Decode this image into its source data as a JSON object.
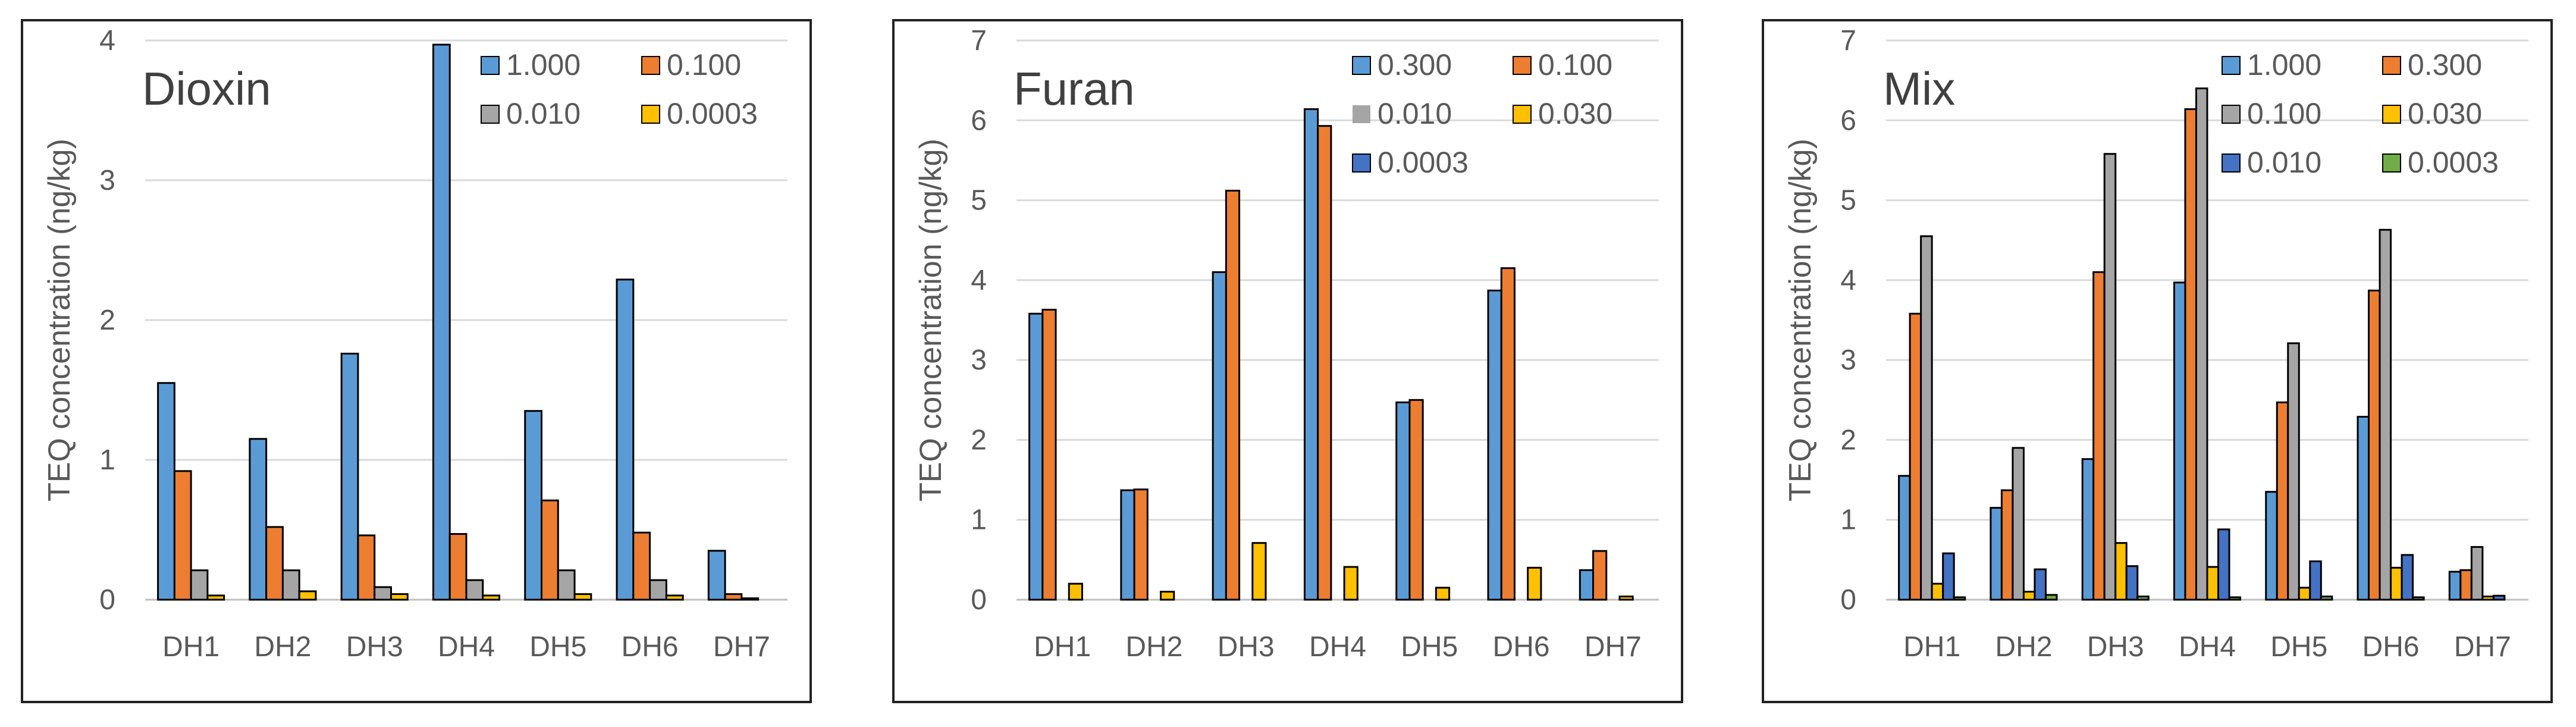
{
  "chart_data": [
    {
      "type": "bar",
      "title": "Dioxin",
      "ylabel": "TEQ concentration (ng/kg)",
      "ylim": [
        0,
        4
      ],
      "yticks": [
        0,
        1,
        2,
        3,
        4
      ],
      "grid": true,
      "legend_position": "top-right",
      "categories": [
        "DH1",
        "DH2",
        "DH3",
        "DH4",
        "DH5",
        "DH6",
        "DH7"
      ],
      "series": [
        {
          "name": "1.000",
          "color": "#5B9BD5",
          "values": [
            1.55,
            1.15,
            1.76,
            3.97,
            1.35,
            2.29,
            0.35
          ]
        },
        {
          "name": "0.100",
          "color": "#ED7D31",
          "values": [
            0.92,
            0.52,
            0.46,
            0.47,
            0.71,
            0.48,
            0.04
          ]
        },
        {
          "name": "0.010",
          "color": "#A5A5A5",
          "values": [
            0.21,
            0.21,
            0.09,
            0.14,
            0.21,
            0.14,
            0.01
          ]
        },
        {
          "name": "0.0003",
          "color": "#FFC000",
          "values": [
            0.03,
            0.06,
            0.04,
            0.03,
            0.04,
            0.03,
            0.0
          ]
        }
      ]
    },
    {
      "type": "bar",
      "title": "Furan",
      "ylabel": "TEQ concentration (ng/kg)",
      "ylim": [
        0,
        7
      ],
      "yticks": [
        0,
        1,
        2,
        3,
        4,
        5,
        6,
        7
      ],
      "grid": true,
      "legend_position": "top-right",
      "categories": [
        "DH1",
        "DH2",
        "DH3",
        "DH4",
        "DH5",
        "DH6",
        "DH7"
      ],
      "series": [
        {
          "name": "0.300",
          "color": "#5B9BD5",
          "values": [
            3.58,
            1.37,
            4.1,
            6.14,
            2.47,
            3.87,
            0.37
          ]
        },
        {
          "name": "0.100",
          "color": "#ED7D31",
          "values": [
            3.63,
            1.38,
            5.12,
            5.93,
            2.5,
            4.15,
            0.61
          ]
        },
        {
          "name": "0.010",
          "color": "#A5A5A5",
          "values": [
            0,
            0,
            0,
            0,
            0,
            0,
            0
          ]
        },
        {
          "name": "0.030",
          "color": "#FFC000",
          "values": [
            0.2,
            0.1,
            0.71,
            0.41,
            0.15,
            0.4,
            0.04
          ]
        },
        {
          "name": "0.0003",
          "color": "#4472C4",
          "values": [
            0,
            0,
            0,
            0,
            0,
            0,
            0
          ]
        }
      ]
    },
    {
      "type": "bar",
      "title": "Mix",
      "ylabel": "TEQ concentration (ng/kg)",
      "ylim": [
        0,
        7
      ],
      "yticks": [
        0,
        1,
        2,
        3,
        4,
        5,
        6,
        7
      ],
      "grid": true,
      "legend_position": "top-right",
      "categories": [
        "DH1",
        "DH2",
        "DH3",
        "DH4",
        "DH5",
        "DH6",
        "DH7"
      ],
      "series": [
        {
          "name": "1.000",
          "color": "#5B9BD5",
          "values": [
            1.55,
            1.15,
            1.76,
            3.97,
            1.35,
            2.29,
            0.35
          ]
        },
        {
          "name": "0.300",
          "color": "#ED7D31",
          "values": [
            3.58,
            1.37,
            4.1,
            6.14,
            2.47,
            3.87,
            0.37
          ]
        },
        {
          "name": "0.100",
          "color": "#A5A5A5",
          "values": [
            4.55,
            1.9,
            5.58,
            6.4,
            3.21,
            4.63,
            0.66
          ]
        },
        {
          "name": "0.030",
          "color": "#FFC000",
          "values": [
            0.2,
            0.1,
            0.71,
            0.41,
            0.15,
            0.4,
            0.04
          ]
        },
        {
          "name": "0.010",
          "color": "#4472C4",
          "values": [
            0.58,
            0.38,
            0.42,
            0.88,
            0.48,
            0.56,
            0.05
          ]
        },
        {
          "name": "0.0003",
          "color": "#70AD47",
          "values": [
            0.03,
            0.06,
            0.04,
            0.03,
            0.04,
            0.03,
            0.0
          ]
        }
      ]
    }
  ]
}
